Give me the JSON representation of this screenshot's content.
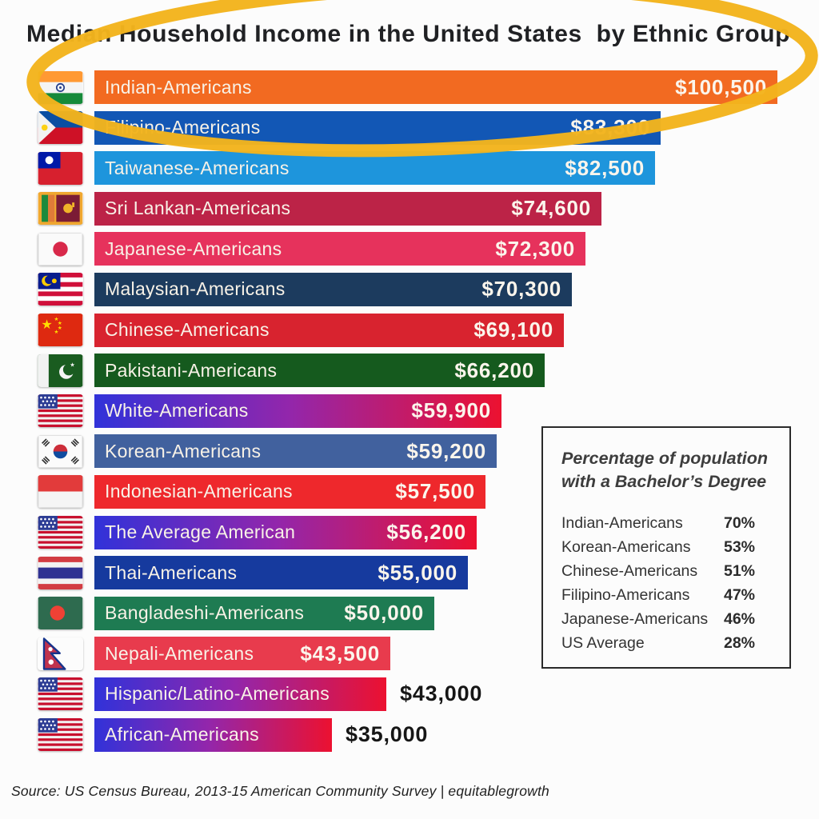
{
  "title": "Median Household Income in the United States  by Ethnic Group",
  "source": "Source: US Census Bureau, 2013-15 American Community Survey | equitablegrowth",
  "colors": {
    "us_gradient": [
      "#3132d9",
      "#9326ab",
      "#ec1130"
    ],
    "highlight_marker": "#f3b41d",
    "title_text": "#202124",
    "bar_text": "#f8f2e7",
    "outside_value_text": "#161616"
  },
  "chart_data": {
    "type": "bar",
    "orientation": "horizontal",
    "unit": "USD",
    "title": "Median Household Income in the United States by Ethnic Group",
    "xlim": [
      0,
      100500
    ],
    "categories": [
      "Indian-Americans",
      "Filipino-Americans",
      "Taiwanese-Americans",
      "Sri Lankan-Americans",
      "Japanese-Americans",
      "Malaysian-Americans",
      "Chinese-Americans",
      "Pakistani-Americans",
      "White-Americans",
      "Korean-Americans",
      "Indonesian-Americans",
      "The Average American",
      "Thai-Americans",
      "Bangladeshi-Americans",
      "Nepali-Americans",
      "Hispanic/Latino-Americans",
      "African-Americans"
    ],
    "values": [
      100500,
      83300,
      82500,
      74600,
      72300,
      70300,
      69100,
      66200,
      59900,
      59200,
      57500,
      56200,
      55000,
      50000,
      43500,
      43000,
      35000
    ],
    "bars": [
      {
        "label": "Indian-Americans",
        "display": "$100,500",
        "value": 100500,
        "color": "#f26a21",
        "flag": "india",
        "value_outside": false,
        "highlighted": true
      },
      {
        "label": "Filipino-Americans",
        "display": "$83,300",
        "value": 83300,
        "color": "#1257b5",
        "flag": "philippines",
        "value_outside": false,
        "highlighted": false
      },
      {
        "label": "Taiwanese-Americans",
        "display": "$82,500",
        "value": 82500,
        "color": "#1e95dc",
        "flag": "taiwan",
        "value_outside": false,
        "highlighted": false
      },
      {
        "label": "Sri Lankan-Americans",
        "display": "$74,600",
        "value": 74600,
        "color": "#bc2347",
        "flag": "srilanka",
        "value_outside": false,
        "highlighted": false
      },
      {
        "label": "Japanese-Americans",
        "display": "$72,300",
        "value": 72300,
        "color": "#e6325c",
        "flag": "japan",
        "value_outside": false,
        "highlighted": false
      },
      {
        "label": "Malaysian-Americans",
        "display": "$70,300",
        "value": 70300,
        "color": "#1c3b5e",
        "flag": "malaysia",
        "value_outside": false,
        "highlighted": false
      },
      {
        "label": "Chinese-Americans",
        "display": "$69,100",
        "value": 69100,
        "color": "#d8232f",
        "flag": "china",
        "value_outside": false,
        "highlighted": false
      },
      {
        "label": "Pakistani-Americans",
        "display": "$66,200",
        "value": 66200,
        "color": "#155a1e",
        "flag": "pakistan",
        "value_outside": false,
        "highlighted": false
      },
      {
        "label": "White-Americans",
        "display": "$59,900",
        "value": 59900,
        "color": "gradient",
        "flag": "usa",
        "value_outside": false,
        "highlighted": false
      },
      {
        "label": "Korean-Americans",
        "display": "$59,200",
        "value": 59200,
        "color": "#41619e",
        "flag": "korea",
        "value_outside": false,
        "highlighted": false
      },
      {
        "label": "Indonesian-Americans",
        "display": "$57,500",
        "value": 57500,
        "color": "#ee282c",
        "flag": "indonesia",
        "value_outside": false,
        "highlighted": false
      },
      {
        "label": "The Average American",
        "display": "$56,200",
        "value": 56200,
        "color": "gradient",
        "flag": "usa",
        "value_outside": false,
        "highlighted": false
      },
      {
        "label": "Thai-Americans",
        "display": "$55,000",
        "value": 55000,
        "color": "#163a9e",
        "flag": "thailand",
        "value_outside": false,
        "highlighted": false
      },
      {
        "label": "Bangladeshi-Americans",
        "display": "$50,000",
        "value": 50000,
        "color": "#1e7b52",
        "flag": "bangladesh",
        "value_outside": false,
        "highlighted": false
      },
      {
        "label": "Nepali-Americans",
        "display": "$43,500",
        "value": 43500,
        "color": "#e83b4d",
        "flag": "nepal",
        "value_outside": false,
        "highlighted": false
      },
      {
        "label": "Hispanic/Latino-Americans",
        "display": "$43,000",
        "value": 43000,
        "color": "gradient",
        "flag": "usa",
        "value_outside": true,
        "highlighted": false
      },
      {
        "label": "African-Americans",
        "display": "$35,000",
        "value": 35000,
        "color": "gradient",
        "flag": "usa",
        "value_outside": true,
        "highlighted": false
      }
    ]
  },
  "degree_box": {
    "title_line1": "Percentage of population",
    "title_line2": "with a Bachelor’s Degree",
    "rows": [
      {
        "name": "Indian-Americans",
        "pct": "70%"
      },
      {
        "name": "Korean-Americans",
        "pct": "53%"
      },
      {
        "name": "Chinese-Americans",
        "pct": "51%"
      },
      {
        "name": "Filipino-Americans",
        "pct": "47%"
      },
      {
        "name": "Japanese-Americans",
        "pct": "46%"
      },
      {
        "name": "US Average",
        "pct": "28%"
      }
    ]
  },
  "annotation": {
    "type": "hand-drawn-ellipse",
    "target": "Indian-Americans bar and chart title",
    "color": "#f3b41d"
  }
}
